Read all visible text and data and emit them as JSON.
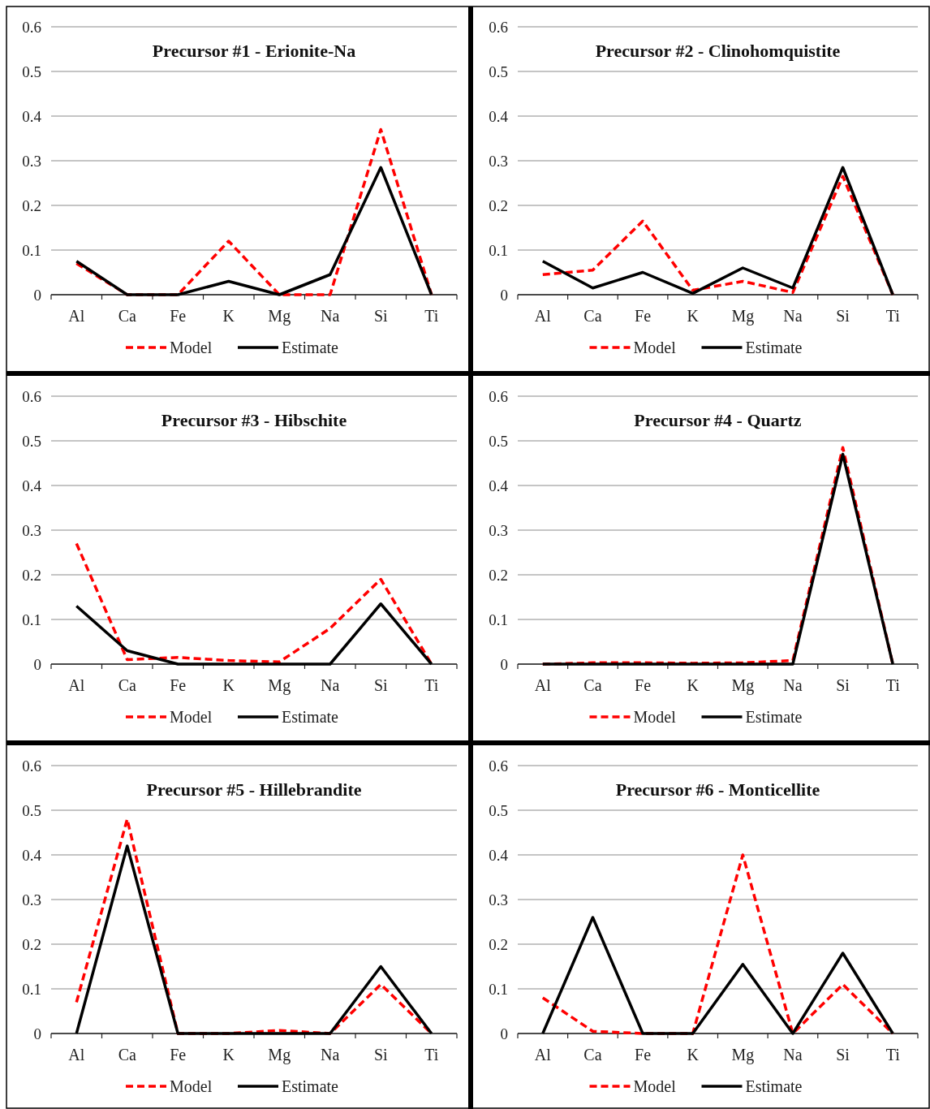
{
  "chart_data": [
    {
      "type": "line",
      "title": "Precursor #1 - Erionite-Na",
      "categories": [
        "Al",
        "Ca",
        "Fe",
        "K",
        "Mg",
        "Na",
        "Si",
        "Ti"
      ],
      "series": [
        {
          "name": "Model",
          "color": "#ff0000",
          "line_style": "dashed",
          "values": [
            0.07,
            0,
            0,
            0.12,
            0,
            0,
            0.37,
            0
          ]
        },
        {
          "name": "Estimate",
          "color": "#000000",
          "line_style": "solid",
          "values": [
            0.075,
            0,
            0,
            0.03,
            0,
            0.045,
            0.285,
            0
          ]
        }
      ],
      "ylim": [
        0,
        0.6
      ],
      "yticks": [
        0,
        0.1,
        0.2,
        0.3,
        0.4,
        0.5,
        0.6
      ],
      "grid": "y",
      "legend": "bottom",
      "marker": "none"
    },
    {
      "type": "line",
      "title": "Precursor #2 - Clinohomquistite",
      "categories": [
        "Al",
        "Ca",
        "Fe",
        "K",
        "Mg",
        "Na",
        "Si",
        "Ti"
      ],
      "series": [
        {
          "name": "Model",
          "color": "#ff0000",
          "line_style": "dashed",
          "values": [
            0.045,
            0.055,
            0.165,
            0.01,
            0.03,
            0.005,
            0.265,
            0
          ]
        },
        {
          "name": "Estimate",
          "color": "#000000",
          "line_style": "solid",
          "values": [
            0.075,
            0.015,
            0.05,
            0.003,
            0.06,
            0.015,
            0.285,
            0
          ]
        }
      ],
      "ylim": [
        0,
        0.6
      ],
      "yticks": [
        0,
        0.1,
        0.2,
        0.3,
        0.4,
        0.5,
        0.6
      ],
      "grid": "y",
      "legend": "bottom",
      "marker": "none"
    },
    {
      "type": "line",
      "title": "Precursor #3 - Hibschite",
      "categories": [
        "Al",
        "Ca",
        "Fe",
        "K",
        "Mg",
        "Na",
        "Si",
        "Ti"
      ],
      "series": [
        {
          "name": "Model",
          "color": "#ff0000",
          "line_style": "dashed",
          "values": [
            0.27,
            0.01,
            0.015,
            0.008,
            0.005,
            0.08,
            0.19,
            0
          ]
        },
        {
          "name": "Estimate",
          "color": "#000000",
          "line_style": "solid",
          "values": [
            0.13,
            0.03,
            0,
            0,
            0,
            0,
            0.135,
            0
          ]
        }
      ],
      "ylim": [
        0,
        0.6
      ],
      "yticks": [
        0,
        0.1,
        0.2,
        0.3,
        0.4,
        0.5,
        0.6
      ],
      "grid": "y",
      "legend": "bottom",
      "marker": "none"
    },
    {
      "type": "line",
      "title": "Precursor #4 - Quartz",
      "categories": [
        "Al",
        "Ca",
        "Fe",
        "K",
        "Mg",
        "Na",
        "Si",
        "Ti"
      ],
      "series": [
        {
          "name": "Model",
          "color": "#ff0000",
          "line_style": "dashed",
          "values": [
            0,
            0.003,
            0.003,
            0.002,
            0.003,
            0.008,
            0.485,
            0
          ]
        },
        {
          "name": "Estimate",
          "color": "#000000",
          "line_style": "solid",
          "values": [
            0,
            0,
            0,
            0,
            0,
            0,
            0.47,
            0
          ]
        }
      ],
      "ylim": [
        0,
        0.6
      ],
      "yticks": [
        0,
        0.1,
        0.2,
        0.3,
        0.4,
        0.5,
        0.6
      ],
      "grid": "y",
      "legend": "bottom",
      "marker": "none"
    },
    {
      "type": "line",
      "title": "Precursor #5 - Hillebrandite",
      "categories": [
        "Al",
        "Ca",
        "Fe",
        "K",
        "Mg",
        "Na",
        "Si",
        "Ti"
      ],
      "series": [
        {
          "name": "Model",
          "color": "#ff0000",
          "line_style": "dashed",
          "values": [
            0.07,
            0.48,
            0,
            0,
            0.007,
            0,
            0.11,
            0
          ]
        },
        {
          "name": "Estimate",
          "color": "#000000",
          "line_style": "solid",
          "values": [
            0,
            0.42,
            0,
            0,
            0,
            0,
            0.15,
            0
          ]
        }
      ],
      "ylim": [
        0,
        0.6
      ],
      "yticks": [
        0,
        0.1,
        0.2,
        0.3,
        0.4,
        0.5,
        0.6
      ],
      "grid": "y",
      "legend": "bottom",
      "marker": "none"
    },
    {
      "type": "line",
      "title": "Precursor #6 - Monticellite",
      "categories": [
        "Al",
        "Ca",
        "Fe",
        "K",
        "Mg",
        "Na",
        "Si",
        "Ti"
      ],
      "series": [
        {
          "name": "Model",
          "color": "#ff0000",
          "line_style": "dashed",
          "values": [
            0.08,
            0.005,
            0,
            0,
            0.4,
            0,
            0.11,
            0
          ]
        },
        {
          "name": "Estimate",
          "color": "#000000",
          "line_style": "solid",
          "values": [
            0,
            0.26,
            0,
            0,
            0.155,
            0,
            0.18,
            0
          ]
        }
      ],
      "ylim": [
        0,
        0.6
      ],
      "yticks": [
        0,
        0.1,
        0.2,
        0.3,
        0.4,
        0.5,
        0.6
      ],
      "grid": "y",
      "legend": "bottom",
      "marker": "none"
    }
  ]
}
